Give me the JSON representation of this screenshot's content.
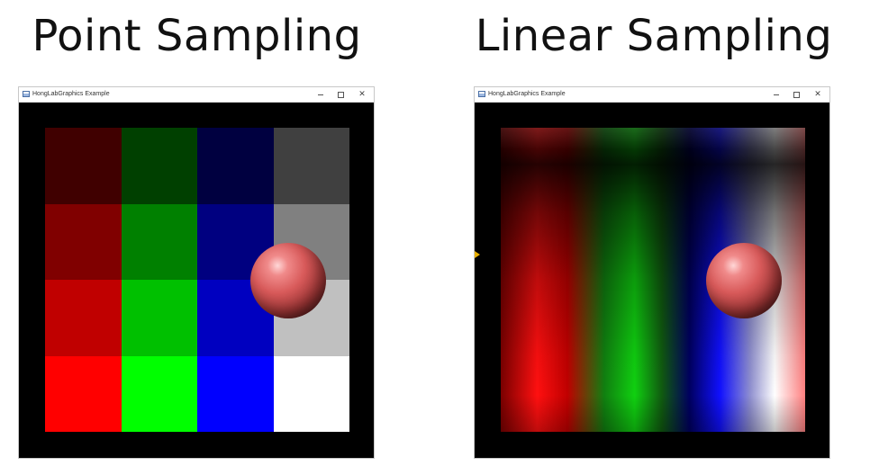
{
  "headings": {
    "point": "Point Sampling",
    "linear": "Linear Sampling"
  },
  "windows": [
    {
      "title": "HongLabGraphics Example",
      "icon": "app-window-icon",
      "controls": [
        "minimize-icon",
        "maximize-icon",
        "close-icon"
      ]
    },
    {
      "title": "HongLabGraphics Example",
      "icon": "app-window-icon",
      "controls": [
        "minimize-icon",
        "maximize-icon",
        "close-icon"
      ]
    }
  ],
  "texture_grid": {
    "rows": 4,
    "cols": 4,
    "colors": [
      [
        "#400000",
        "#004000",
        "#000040",
        "#404040"
      ],
      [
        "#800000",
        "#008000",
        "#000080",
        "#808080"
      ],
      [
        "#c00000",
        "#00c000",
        "#0000c0",
        "#c0c0c0"
      ],
      [
        "#ff0000",
        "#00ff00",
        "#0000ff",
        "#ffffff"
      ]
    ]
  },
  "sphere": {
    "color": "#e06060",
    "highlight": "#ffd7d7"
  },
  "cursor_color": "#e8b000"
}
